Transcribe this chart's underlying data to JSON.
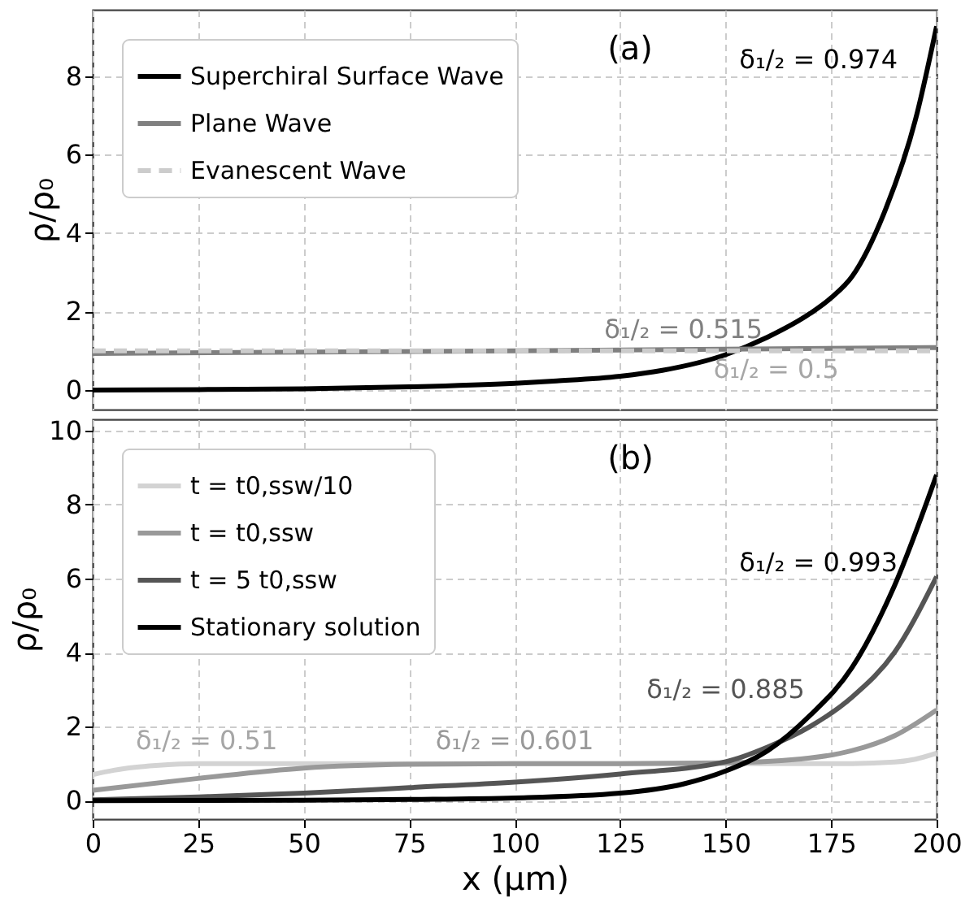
{
  "chart_data": [
    {
      "type": "line",
      "ylabel": "ρ/ρ₀",
      "xlim": [
        0,
        200
      ],
      "xticks": [
        0,
        25,
        50,
        75,
        100,
        125,
        150,
        175,
        200
      ],
      "ylim": [
        -0.5,
        9.7
      ],
      "yticks": [
        0,
        2,
        4,
        6,
        8
      ],
      "tick_labels": "y",
      "grid": true,
      "legend": "top left",
      "series": [
        {
          "name": "Superchiral Surface Wave",
          "color": "#000000",
          "line_style": "solid",
          "x": [
            0,
            25,
            50,
            75,
            100,
            110,
            125,
            135,
            150,
            160,
            170,
            175,
            180,
            187.5,
            195,
            200
          ],
          "values": [
            0,
            0.01,
            0.03,
            0.08,
            0.17,
            0.23,
            0.35,
            0.5,
            0.9,
            1.35,
            1.95,
            2.35,
            2.9,
            4.5,
            6.9,
            9.28
          ]
        },
        {
          "name": "Plane Wave",
          "color": "#808080",
          "line_style": "solid",
          "x": [
            0,
            100,
            200
          ],
          "values": [
            0.93,
            1.0,
            1.08
          ]
        },
        {
          "name": "Evanescent Wave",
          "color": "#cccccc",
          "line_style": "dashed",
          "x": [
            0,
            100,
            200
          ],
          "values": [
            1.0,
            1.0,
            1.0
          ]
        }
      ],
      "annotations": [
        "δ₁/₂ = 0.974",
        "δ₁/₂ = 0.515",
        "δ₁/₂ = 0.5",
        "(a)"
      ]
    },
    {
      "type": "line",
      "xlabel": "x (μm)",
      "ylabel": "ρ/ρ₀",
      "xlim": [
        0,
        200
      ],
      "xticks": [
        0,
        25,
        50,
        75,
        100,
        125,
        150,
        175,
        200
      ],
      "ylim": [
        -0.5,
        10.3
      ],
      "yticks": [
        0,
        2,
        4,
        6,
        8,
        10
      ],
      "grid": true,
      "legend": "top left",
      "series": [
        {
          "name": "t = t0,ssw/10",
          "color": "#d3d3d3",
          "line_style": "solid",
          "x": [
            0,
            5,
            10,
            15,
            25,
            50,
            100,
            150,
            180,
            190,
            195,
            200
          ],
          "values": [
            0.7,
            0.82,
            0.9,
            0.95,
            1.0,
            1.0,
            1.0,
            1.0,
            1.0,
            1.04,
            1.12,
            1.28
          ]
        },
        {
          "name": "t = t0,ssw",
          "color": "#999999",
          "line_style": "solid",
          "x": [
            0,
            25,
            50,
            75,
            100,
            125,
            150,
            170,
            180,
            190,
            200
          ],
          "values": [
            0.28,
            0.6,
            0.88,
            0.98,
            1.0,
            1.0,
            1.02,
            1.15,
            1.35,
            1.75,
            2.45
          ]
        },
        {
          "name": "t = 5 t0,ssw",
          "color": "#555555",
          "line_style": "solid",
          "x": [
            0,
            25,
            50,
            75,
            100,
            125,
            150,
            160,
            170,
            180,
            190,
            200
          ],
          "values": [
            0.02,
            0.1,
            0.2,
            0.35,
            0.5,
            0.72,
            1.05,
            1.45,
            2.0,
            2.8,
            4.0,
            6.05
          ]
        },
        {
          "name": "Stationary solution",
          "color": "#000000",
          "line_style": "solid",
          "x": [
            0,
            50,
            75,
            100,
            125,
            140,
            150,
            160,
            170,
            180,
            190,
            200
          ],
          "values": [
            0,
            0.01,
            0.03,
            0.07,
            0.2,
            0.45,
            0.8,
            1.35,
            2.3,
            3.6,
            5.8,
            8.8
          ]
        }
      ],
      "annotations": [
        "δ₁/₂ = 0.993",
        "δ₁/₂ = 0.885",
        "δ₁/₂ = 0.601",
        "δ₁/₂ = 0.51",
        "(b)"
      ]
    }
  ]
}
